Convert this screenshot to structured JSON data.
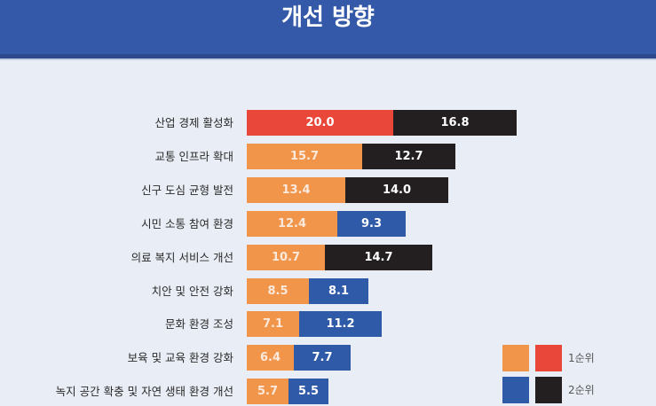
{
  "header": {
    "title": "개선 방향"
  },
  "colors": {
    "header_bg": "#3359a8",
    "rank1_primary": "#e9473a",
    "rank1_secondary": "#f0954a",
    "rank2_primary": "#231f20",
    "rank2_secondary": "#2f5aa8",
    "background": "#e9edf5"
  },
  "legend": {
    "rank1_label": "1순위",
    "rank2_label": "2순위"
  },
  "chart_data": {
    "type": "bar",
    "orientation": "horizontal",
    "stacked": true,
    "title": "개선 방향",
    "xlabel": "",
    "ylabel": "",
    "categories": [
      "산업 경제 활성화",
      "교통 인프라 확대",
      "신구 도심 균형 발전",
      "시민 소통 참여 환경",
      "의료 복지 서비스 개선",
      "치안 및 안전 강화",
      "문화 환경 조성",
      "보육 및 교육 환경 강화",
      "녹지 공간 확충 및 자연 생태 환경 개선"
    ],
    "series": [
      {
        "name": "1순위",
        "values": [
          20.0,
          15.7,
          13.4,
          12.4,
          10.7,
          8.5,
          7.1,
          6.4,
          5.7
        ]
      },
      {
        "name": "2순위",
        "values": [
          16.8,
          12.7,
          14.0,
          9.3,
          14.7,
          8.1,
          11.2,
          7.7,
          5.5
        ]
      }
    ],
    "value_labels": {
      "rank1": [
        "20.0",
        "15.7",
        "13.4",
        "12.4",
        "10.7",
        "8.5",
        "7.1",
        "6.4",
        "5.7"
      ],
      "rank2": [
        "16.8",
        "12.7",
        "14.0",
        "9.3",
        "14.7",
        "8.1",
        "11.2",
        "7.7",
        "5.5"
      ]
    },
    "legend_position": "bottom-right",
    "grid": false
  }
}
